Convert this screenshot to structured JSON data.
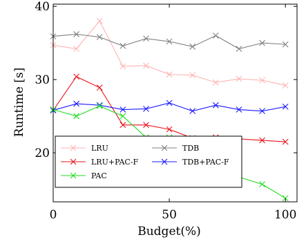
{
  "chart_data": {
    "type": "line",
    "xlabel": "Budget(%)",
    "ylabel": "Runtime [s]",
    "xlim": [
      0,
      105
    ],
    "ylim": [
      13.3,
      40.3
    ],
    "xticks": [
      0,
      50,
      100
    ],
    "yticks": [
      20,
      30,
      40
    ],
    "x": [
      0,
      10,
      20,
      30,
      40,
      50,
      60,
      70,
      80,
      90,
      100
    ],
    "grid": false,
    "legend_position": "bottom-left",
    "series": [
      {
        "name": "LRU",
        "color": "#ffb3b3",
        "values": [
          34.7,
          34.2,
          38.0,
          31.8,
          31.9,
          30.7,
          30.6,
          29.6,
          30.1,
          29.9,
          29.2
        ]
      },
      {
        "name": "TDB",
        "color": "#808080",
        "values": [
          35.9,
          36.2,
          35.8,
          34.6,
          35.6,
          35.2,
          34.5,
          36.0,
          34.2,
          35.0,
          34.8
        ]
      },
      {
        "name": "LRU+PAC-F",
        "color": "#e8141c",
        "values": [
          25.8,
          30.4,
          28.9,
          23.8,
          23.8,
          23.2,
          22.0,
          22.1,
          21.9,
          21.7,
          21.5
        ]
      },
      {
        "name": "TDB+PAC-F",
        "color": "#1a1aff",
        "values": [
          25.8,
          26.7,
          26.5,
          25.9,
          26.0,
          26.8,
          25.7,
          26.5,
          25.9,
          25.7,
          26.3
        ]
      },
      {
        "name": "PAC",
        "color": "#22dd22",
        "values": [
          25.9,
          25.0,
          26.4,
          25.0,
          22.1,
          22.1,
          21.4,
          19.8,
          16.7,
          15.7,
          13.8
        ]
      }
    ]
  }
}
